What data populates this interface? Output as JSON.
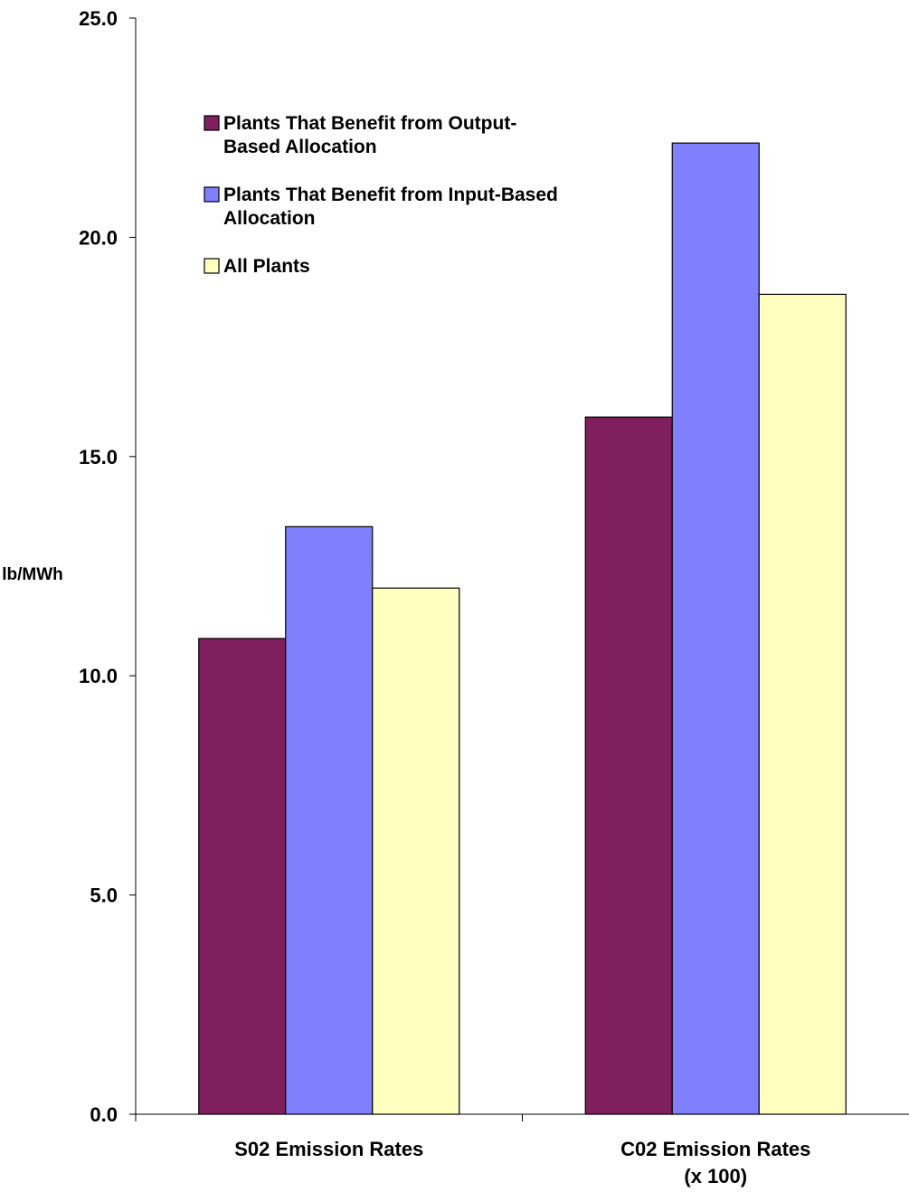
{
  "chart_data": {
    "type": "bar",
    "title": "",
    "xlabel": "",
    "ylabel": "lb/MWh",
    "ylim": [
      0,
      25
    ],
    "yticks": [
      "0.0",
      "5.0",
      "10.0",
      "15.0",
      "20.0",
      "25.0"
    ],
    "grid": false,
    "legend_position": "top-left inside plot",
    "categories": [
      [
        "S02 Emission Rates"
      ],
      [
        "C02 Emission Rates",
        "(x 100)"
      ]
    ],
    "series": [
      {
        "name": [
          "Plants That Benefit from Output-",
          "Based Allocation"
        ],
        "color": "#7f1f5e",
        "values": [
          10.85,
          15.9
        ]
      },
      {
        "name": [
          "Plants That Benefit from Input-Based",
          "Allocation"
        ],
        "color": "#8080ff",
        "values": [
          13.4,
          22.15
        ]
      },
      {
        "name": [
          "All Plants"
        ],
        "color": "#ffffc0",
        "values": [
          12.0,
          18.7
        ]
      }
    ]
  }
}
